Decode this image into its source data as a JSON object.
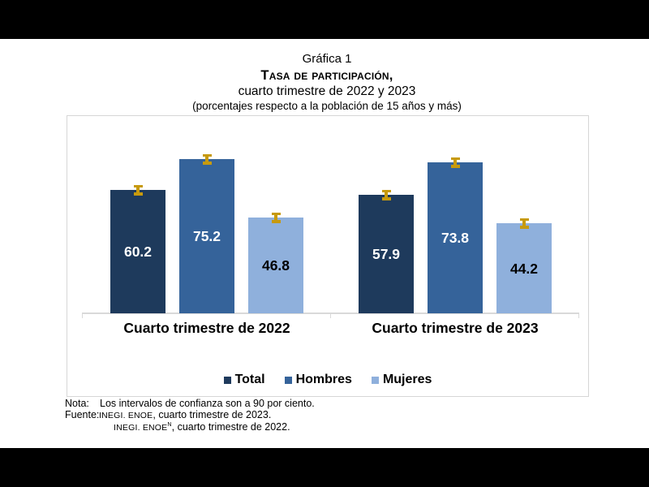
{
  "title": {
    "line1": "Gráfica 1",
    "line2": "Tasa de participación,",
    "line3": "cuarto trimestre de 2022 y 2023",
    "line4": "(porcentajes respecto a la población de 15 años y más)"
  },
  "chart_data": {
    "type": "bar",
    "title": "Gráfica 1 — Tasa de participación, cuarto trimestre de 2022 y 2023",
    "subtitle": "(porcentajes respecto a la población de 15 años y más)",
    "categories": [
      "Cuarto trimestre de 2022",
      "Cuarto trimestre de 2023"
    ],
    "series": [
      {
        "name": "Total",
        "color": "#1e3a5c",
        "value_label_color": "#ffffff",
        "values": [
          60.2,
          57.9
        ]
      },
      {
        "name": "Hombres",
        "color": "#35639a",
        "value_label_color": "#ffffff",
        "values": [
          75.2,
          73.8
        ]
      },
      {
        "name": "Mujeres",
        "color": "#8fb0dc",
        "value_label_color": "#000000",
        "values": [
          46.8,
          44.2
        ]
      }
    ],
    "ylim": [
      0,
      96
    ],
    "grid": false,
    "y_axis_shown": false,
    "legend_position": "bottom",
    "error_bars": {
      "visible": true,
      "color": "#c79a0e",
      "description": "intervalos de confianza a 90 por ciento"
    }
  },
  "notes": {
    "nota_label": "Nota:",
    "nota_text": "Los intervalos de confianza son a 90 por ciento.",
    "fuente_label": "Fuente:",
    "fuente1_org": "INEGI. ENOE",
    "fuente1_rest": ", cuarto trimestre de 2023.",
    "fuente2_org": "INEGI. ENOE",
    "fuente2_sup": "N",
    "fuente2_rest": ", cuarto trimestre de 2022."
  }
}
